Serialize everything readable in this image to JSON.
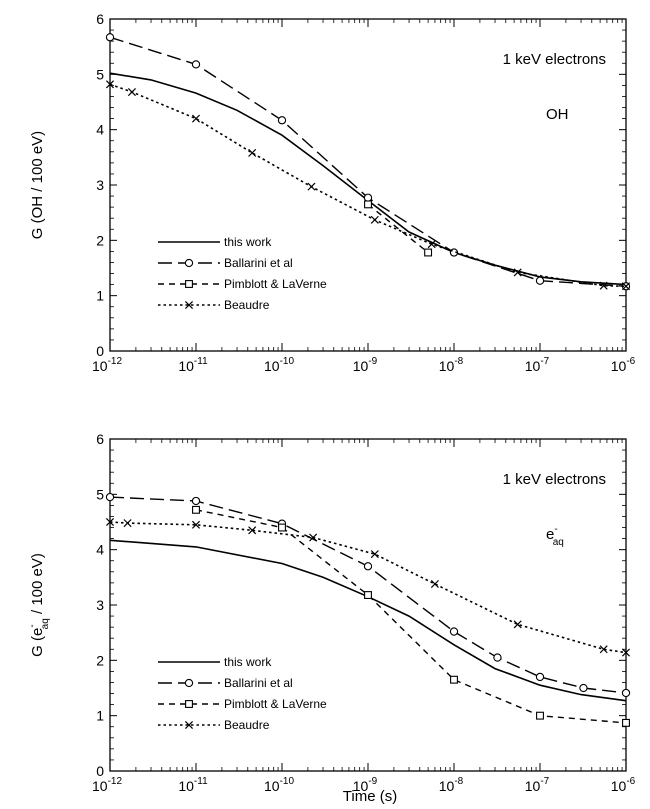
{
  "xlabel": "Time  (s)",
  "chart_data": [
    {
      "type": "line",
      "ylabel_prefix": "G  (OH / 100 eV)",
      "xscale": "log",
      "xlim": [
        1e-12,
        1e-06
      ],
      "ylim": [
        0,
        6
      ],
      "yticks": [
        "0",
        "1",
        "2",
        "3",
        "4",
        "5",
        "6"
      ],
      "xticks_base": "10",
      "xticks_exp": [
        "-12",
        "-11",
        "-10",
        "-9",
        "-8",
        "-7",
        "-6"
      ],
      "annotation_title": "1 keV electrons",
      "annotation_species": "OH",
      "legend_position": "lower-left",
      "series": [
        {
          "name": "this work",
          "style": "solid",
          "marker": "none",
          "points": [
            [
              1e-12,
              5.02
            ],
            [
              3e-12,
              4.9
            ],
            [
              1e-11,
              4.66
            ],
            [
              3e-11,
              4.35
            ],
            [
              1e-10,
              3.9
            ],
            [
              3e-10,
              3.35
            ],
            [
              1e-09,
              2.72
            ],
            [
              3e-09,
              2.15
            ],
            [
              1e-08,
              1.78
            ],
            [
              3e-08,
              1.55
            ],
            [
              1e-07,
              1.34
            ],
            [
              3e-07,
              1.25
            ],
            [
              1e-06,
              1.2
            ]
          ]
        },
        {
          "name": "Ballarini et al",
          "style": "longdash",
          "marker": "circle",
          "points": [
            [
              1e-12,
              5.67
            ],
            [
              1e-11,
              5.18
            ],
            [
              1e-10,
              4.17
            ],
            [
              1e-09,
              2.77
            ],
            [
              1e-08,
              1.78
            ],
            [
              1e-07,
              1.27
            ],
            [
              1e-06,
              1.17
            ]
          ]
        },
        {
          "name": "Pimblott & LaVerne",
          "style": "shortdash",
          "marker": "square",
          "points": [
            [
              1e-09,
              2.65
            ],
            [
              5e-09,
              1.78
            ]
          ]
        },
        {
          "name": "Beaudre",
          "style": "dotted",
          "marker": "x",
          "points": [
            [
              1e-12,
              4.82
            ],
            [
              1.8e-12,
              4.68
            ],
            [
              1e-11,
              4.2
            ],
            [
              4.5e-11,
              3.58
            ],
            [
              2.2e-10,
              2.97
            ],
            [
              1.2e-09,
              2.37
            ],
            [
              5.5e-09,
              1.93
            ],
            [
              5.5e-08,
              1.42
            ],
            [
              5.5e-07,
              1.18
            ],
            [
              1e-06,
              1.17
            ]
          ]
        }
      ]
    },
    {
      "type": "line",
      "ylabel_prefix": "G  (e",
      "ylabel_sup": "-",
      "ylabel_sub": "aq",
      "ylabel_suffix": " / 100 eV)",
      "xscale": "log",
      "xlim": [
        1e-12,
        1e-06
      ],
      "ylim": [
        0,
        6
      ],
      "yticks": [
        "0",
        "1",
        "2",
        "3",
        "4",
        "5",
        "6"
      ],
      "xticks_base": "10",
      "xticks_exp": [
        "-12",
        "-11",
        "-10",
        "-9",
        "-8",
        "-7",
        "-6"
      ],
      "annotation_title": "1 keV electrons",
      "annotation_species": "e",
      "annotation_species_sup": "-",
      "annotation_species_sub": "aq",
      "legend_position": "lower-left",
      "series": [
        {
          "name": "this work",
          "style": "solid",
          "marker": "none",
          "points": [
            [
              1e-12,
              4.17
            ],
            [
              1e-11,
              4.05
            ],
            [
              1e-10,
              3.75
            ],
            [
              3e-10,
              3.5
            ],
            [
              1e-09,
              3.15
            ],
            [
              3e-09,
              2.8
            ],
            [
              1e-08,
              2.28
            ],
            [
              3e-08,
              1.85
            ],
            [
              1e-07,
              1.55
            ],
            [
              3e-07,
              1.38
            ],
            [
              1e-06,
              1.27
            ]
          ]
        },
        {
          "name": "Ballarini et al",
          "style": "longdash",
          "marker": "circle",
          "points": [
            [
              1e-12,
              4.95
            ],
            [
              1e-11,
              4.88
            ],
            [
              1e-10,
              4.47
            ],
            [
              1e-09,
              3.7
            ],
            [
              1e-08,
              2.52
            ],
            [
              3.2e-08,
              2.05
            ],
            [
              1e-07,
              1.7
            ],
            [
              3.2e-07,
              1.5
            ],
            [
              1e-06,
              1.41
            ]
          ]
        },
        {
          "name": "Pimblott & LaVerne",
          "style": "shortdash",
          "marker": "square",
          "points": [
            [
              1e-11,
              4.72
            ],
            [
              1e-10,
              4.4
            ],
            [
              1e-09,
              3.18
            ],
            [
              1e-08,
              1.65
            ],
            [
              1e-07,
              1.0
            ],
            [
              1e-06,
              0.87
            ]
          ]
        },
        {
          "name": "Beaudre",
          "style": "dotted",
          "marker": "x",
          "points": [
            [
              1e-12,
              4.5
            ],
            [
              1.6e-12,
              4.48
            ],
            [
              1e-11,
              4.45
            ],
            [
              4.5e-11,
              4.35
            ],
            [
              2.3e-10,
              4.22
            ],
            [
              1.2e-09,
              3.92
            ],
            [
              6e-09,
              3.38
            ],
            [
              5.5e-08,
              2.65
            ],
            [
              5.5e-07,
              2.2
            ],
            [
              1e-06,
              2.14
            ]
          ]
        }
      ]
    }
  ]
}
